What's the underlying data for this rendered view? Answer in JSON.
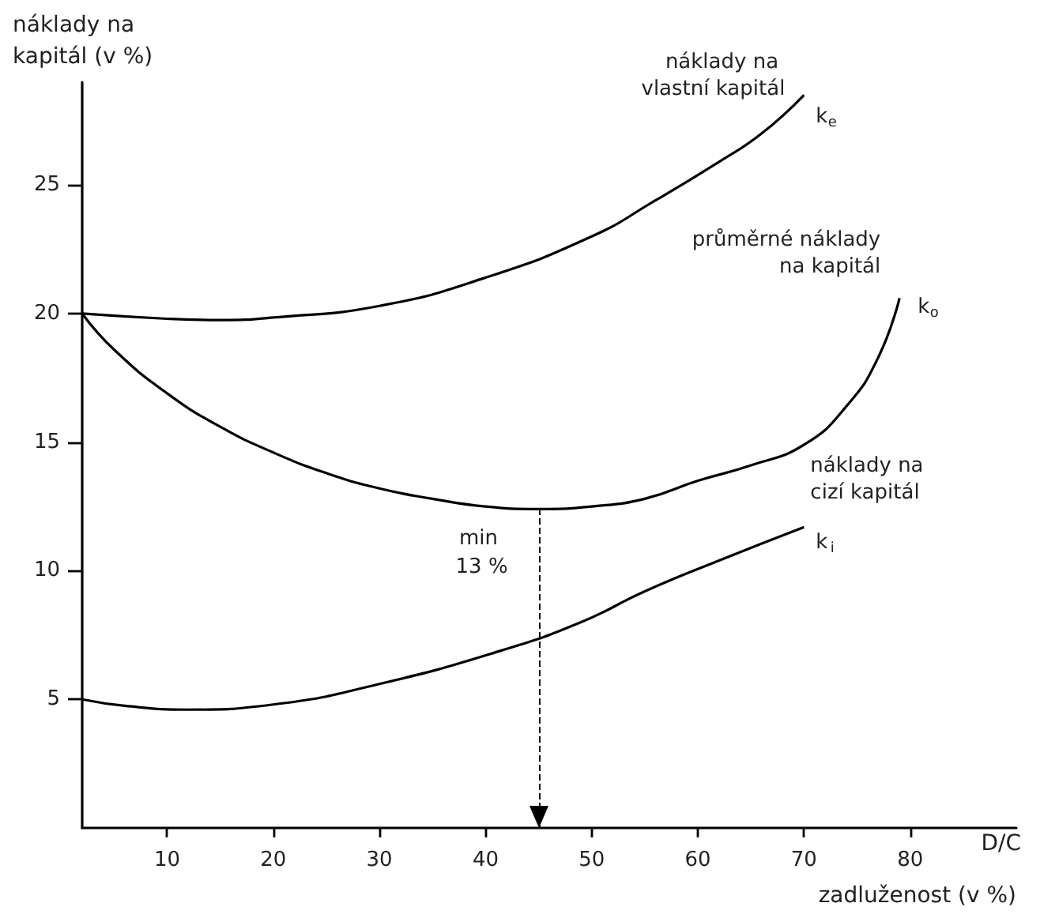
{
  "chart_data": {
    "type": "line",
    "xlabel": "zadluženost (v %)",
    "ylabel": "náklady na kapitál (v %)",
    "xlim": [
      2,
      90
    ],
    "xticks": [
      10,
      20,
      30,
      40,
      50,
      60,
      70,
      80
    ],
    "ylim": [
      0,
      29
    ],
    "yticks": [
      5,
      10,
      15,
      20,
      25
    ],
    "grid": false,
    "legend": false,
    "marker": "none",
    "line_style": "solid",
    "series": [
      {
        "name": "náklady na vlastní kapitál",
        "color": "#000000",
        "x": [
          2,
          10,
          15,
          20,
          30,
          40,
          50,
          56,
          62,
          66,
          70
        ],
        "values": [
          20,
          19.8,
          19.75,
          19.85,
          20.3,
          21.4,
          23,
          24.4,
          25.9,
          27,
          28.5
        ]
      },
      {
        "name": "průměrné náklady na kapitál",
        "color": "#000000",
        "x": [
          2,
          5,
          10,
          15,
          20,
          25,
          30,
          35,
          40,
          45,
          50,
          55,
          60,
          65,
          70,
          74,
          77,
          79
        ],
        "values": [
          20,
          18.6,
          16.9,
          15.6,
          14.6,
          13.8,
          13.2,
          12.8,
          12.5,
          12.4,
          12.5,
          12.8,
          13.5,
          14.1,
          14.9,
          16.4,
          18.3,
          20.6
        ]
      },
      {
        "name": "náklady na cizí kapitál",
        "color": "#000000",
        "x": [
          2,
          6,
          12,
          20,
          30,
          41.5,
          49,
          55,
          62,
          70
        ],
        "values": [
          5,
          4.75,
          4.6,
          4.8,
          5.6,
          6.9,
          8,
          9.2,
          10.4,
          11.7
        ]
      }
    ],
    "ref_lines": [
      {
        "axis": "x",
        "value": 45,
        "label": null,
        "color": "#000000",
        "line_style": "dashed"
      }
    ],
    "annotations": [
      "D/C",
      {
        "text": "min 13 %",
        "x": 45,
        "y": 12.4
      },
      {
        "text": "k$_{e}$",
        "x": 70,
        "y": 28.5
      },
      {
        "text": "k$_{o}$",
        "x": 79,
        "y": 20.6
      },
      {
        "text": "k$_{i}$",
        "x": 70,
        "y": 11.7
      }
    ]
  }
}
